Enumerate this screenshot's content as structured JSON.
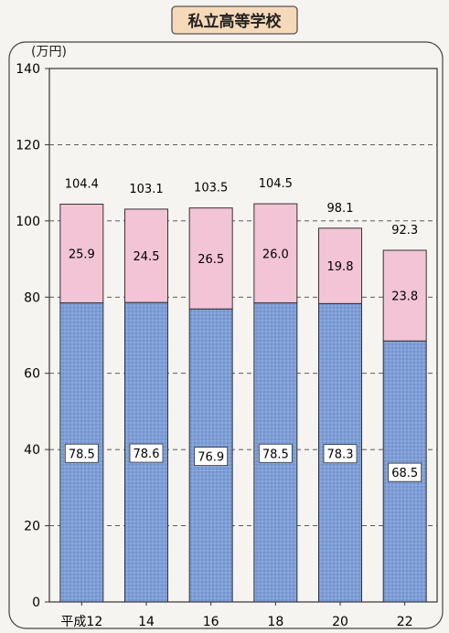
{
  "chart_data": {
    "type": "bar",
    "stacked": true,
    "title": "私立高等学校",
    "unit_label": "(万円)",
    "categories": [
      "平成12",
      "14",
      "16",
      "18",
      "20",
      "22"
    ],
    "series": [
      {
        "values": [
          78.5,
          78.6,
          76.9,
          78.5,
          78.3,
          68.5
        ],
        "color": "#7f9fd6"
      },
      {
        "values": [
          25.9,
          24.5,
          26.5,
          26.0,
          19.8,
          23.8
        ],
        "color": "#f2c4d6"
      }
    ],
    "totals": [
      104.4,
      103.1,
      103.5,
      104.5,
      98.1,
      92.3
    ],
    "ylim": [
      0,
      140
    ],
    "yticks": [
      0,
      20,
      40,
      60,
      80,
      100,
      120,
      140
    ],
    "grid": "dashed-horizontal"
  }
}
